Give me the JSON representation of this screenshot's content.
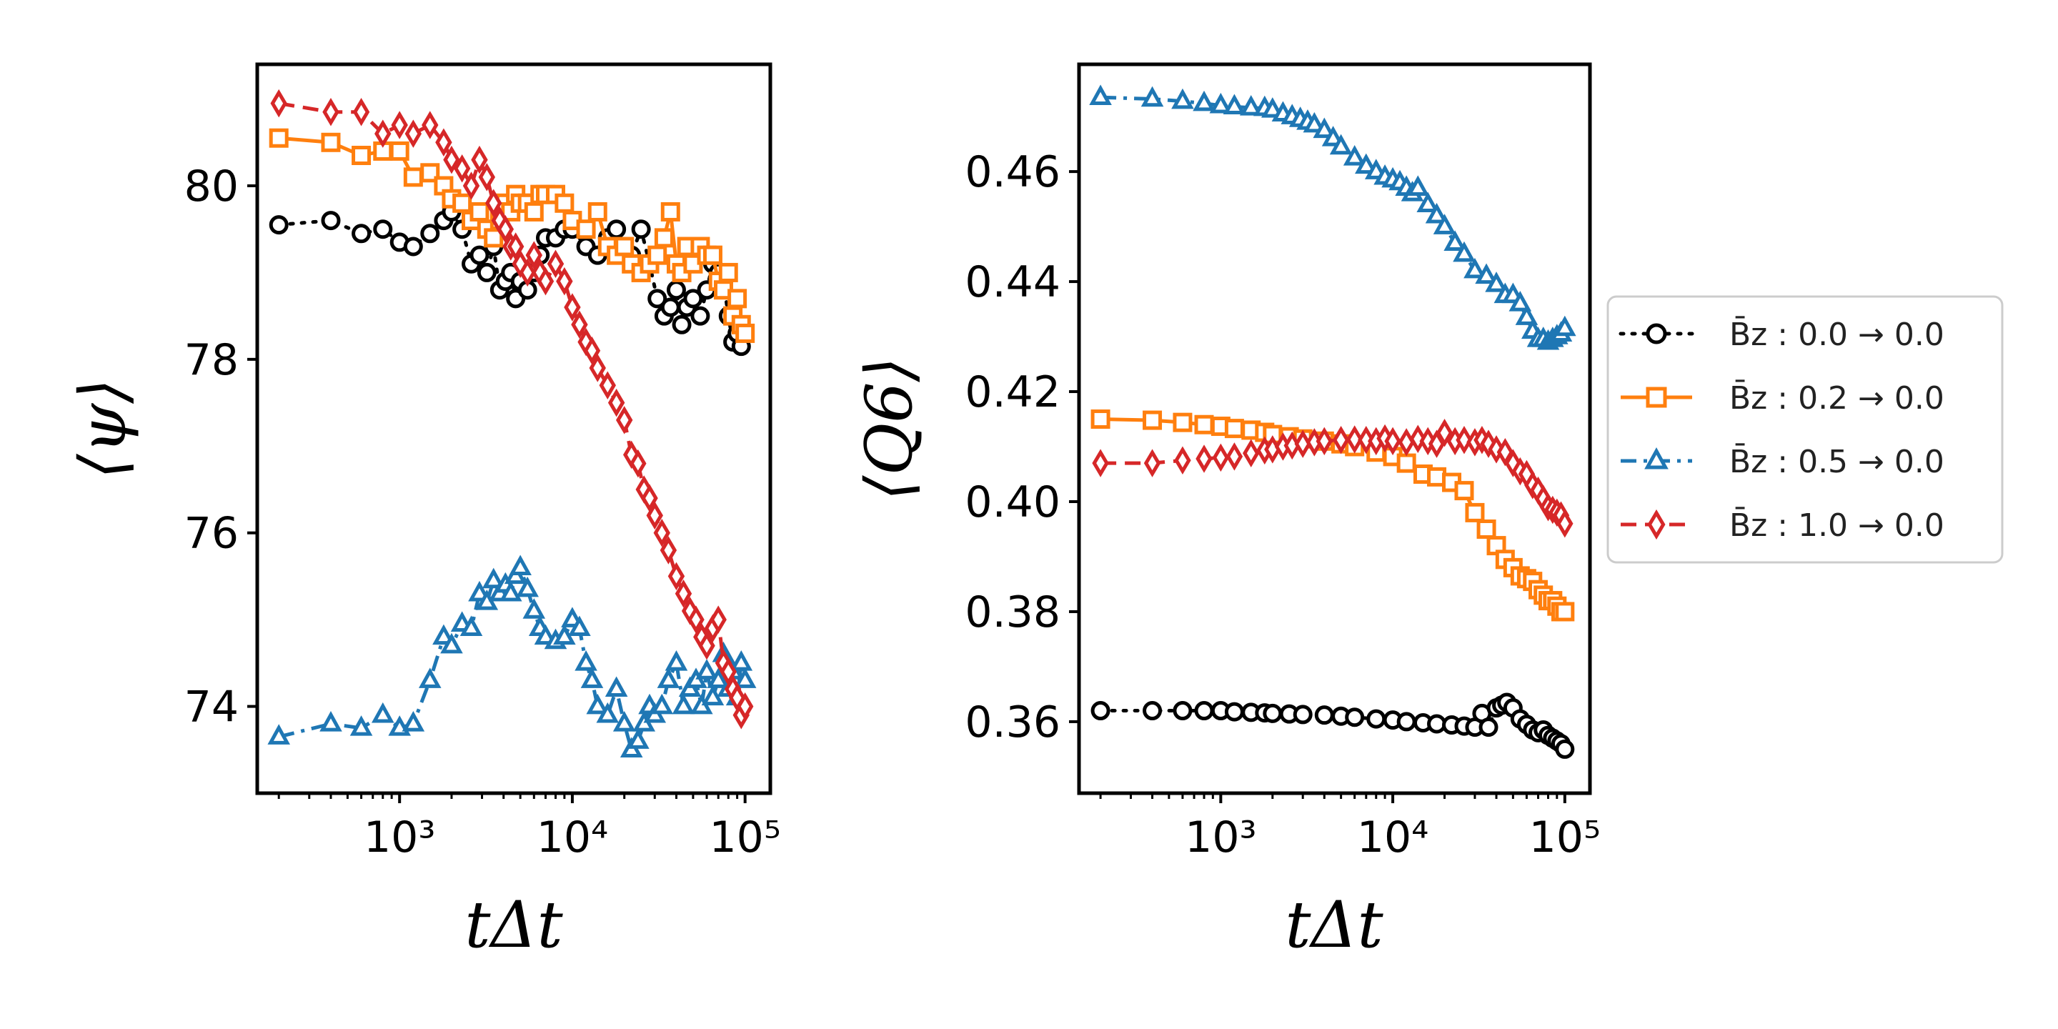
{
  "chart_data": [
    {
      "type": "line",
      "xscale": "log",
      "xlabel": "tΔt",
      "ylabel": "⟨ψ⟩",
      "xlim": [
        150,
        140000
      ],
      "ylim": [
        73.0,
        81.4
      ],
      "xticks": [
        {
          "value": 1000,
          "label": "10³"
        },
        {
          "value": 10000,
          "label": "10⁴"
        },
        {
          "value": 100000,
          "label": "10⁵"
        }
      ],
      "yticks": [
        {
          "value": 74,
          "label": "74"
        },
        {
          "value": 76,
          "label": "76"
        },
        {
          "value": 78,
          "label": "78"
        },
        {
          "value": 80,
          "label": "80"
        }
      ],
      "series": [
        {
          "key": "b00",
          "x": [
            200,
            400,
            600,
            800,
            1000,
            1200,
            1500,
            1800,
            2000,
            2300,
            2600,
            2900,
            3200,
            3500,
            3800,
            4100,
            4400,
            4700,
            5000,
            5500,
            6000,
            6500,
            7000,
            8000,
            9000,
            10000,
            12000,
            14000,
            16000,
            18000,
            20000,
            22000,
            25000,
            28000,
            31000,
            34000,
            37000,
            40000,
            43000,
            46000,
            50000,
            55000,
            60000,
            65000,
            70000,
            75000,
            80000,
            85000,
            90000,
            95000
          ],
          "y": [
            79.55,
            79.6,
            79.45,
            79.5,
            79.35,
            79.3,
            79.45,
            79.6,
            79.7,
            79.5,
            79.1,
            79.2,
            79.0,
            79.3,
            78.8,
            78.9,
            79.0,
            78.7,
            78.9,
            78.8,
            79.0,
            79.2,
            79.4,
            79.4,
            79.5,
            79.5,
            79.3,
            79.2,
            79.4,
            79.5,
            79.3,
            79.2,
            79.5,
            79.1,
            78.7,
            78.5,
            78.6,
            78.8,
            78.4,
            78.6,
            78.7,
            78.5,
            78.8,
            79.1,
            79.0,
            78.9,
            78.5,
            78.2,
            78.3,
            78.15
          ]
        },
        {
          "key": "b02",
          "x": [
            200,
            400,
            600,
            800,
            1000,
            1200,
            1500,
            1800,
            2000,
            2300,
            2600,
            2900,
            3200,
            3500,
            3800,
            4100,
            4400,
            4700,
            5000,
            5500,
            6000,
            6500,
            7000,
            8000,
            9000,
            10000,
            12000,
            14000,
            16000,
            18000,
            20000,
            22000,
            25000,
            28000,
            31000,
            34000,
            37000,
            40000,
            43000,
            46000,
            50000,
            55000,
            60000,
            65000,
            70000,
            75000,
            80000,
            85000,
            90000,
            95000,
            100000
          ],
          "y": [
            80.55,
            80.5,
            80.35,
            80.4,
            80.4,
            80.1,
            80.15,
            80.0,
            79.85,
            79.8,
            79.6,
            79.7,
            79.5,
            79.4,
            79.6,
            79.8,
            79.7,
            79.9,
            79.8,
            79.8,
            79.7,
            79.9,
            79.9,
            79.9,
            79.8,
            79.6,
            79.5,
            79.7,
            79.3,
            79.2,
            79.3,
            79.1,
            79.0,
            79.1,
            79.2,
            79.4,
            79.7,
            79.1,
            79.0,
            79.3,
            79.1,
            79.3,
            79.2,
            79.2,
            78.9,
            78.8,
            79.0,
            78.5,
            78.7,
            78.4,
            78.3
          ]
        },
        {
          "key": "b05",
          "x": [
            200,
            400,
            600,
            800,
            1000,
            1200,
            1500,
            1800,
            2000,
            2300,
            2600,
            2900,
            3200,
            3500,
            3800,
            4100,
            4400,
            4700,
            5000,
            5500,
            6000,
            6500,
            7000,
            8000,
            9000,
            10000,
            11000,
            12000,
            13000,
            14000,
            16000,
            18000,
            20000,
            22000,
            24000,
            26000,
            28000,
            30000,
            33000,
            36000,
            40000,
            44000,
            48000,
            52000,
            56000,
            60000,
            65000,
            70000,
            75000,
            80000,
            85000,
            90000,
            95000,
            100000
          ],
          "y": [
            73.65,
            73.8,
            73.75,
            73.9,
            73.75,
            73.8,
            74.3,
            74.8,
            74.7,
            74.95,
            74.9,
            75.3,
            75.2,
            75.45,
            75.3,
            75.4,
            75.3,
            75.5,
            75.6,
            75.35,
            75.1,
            74.9,
            74.8,
            74.75,
            74.8,
            75.0,
            74.9,
            74.5,
            74.3,
            74.0,
            73.9,
            74.2,
            73.8,
            73.5,
            73.6,
            73.8,
            74.0,
            73.9,
            74.0,
            74.3,
            74.5,
            74.0,
            74.2,
            74.3,
            74.0,
            74.4,
            74.1,
            74.3,
            74.6,
            74.2,
            74.4,
            74.1,
            74.5,
            74.3
          ]
        },
        {
          "key": "b10",
          "x": [
            200,
            400,
            600,
            800,
            1000,
            1200,
            1500,
            1800,
            2000,
            2300,
            2600,
            2900,
            3200,
            3500,
            3800,
            4100,
            4400,
            4700,
            5000,
            5500,
            6000,
            6500,
            7000,
            8000,
            9000,
            10000,
            11000,
            12000,
            13000,
            14000,
            16000,
            18000,
            20000,
            22000,
            24000,
            26000,
            28000,
            30000,
            33000,
            36000,
            40000,
            44000,
            48000,
            52000,
            56000,
            60000,
            65000,
            70000,
            75000,
            80000,
            85000,
            90000,
            95000,
            100000
          ],
          "y": [
            80.95,
            80.85,
            80.85,
            80.6,
            80.7,
            80.6,
            80.7,
            80.5,
            80.3,
            80.2,
            80.0,
            80.3,
            80.1,
            79.8,
            79.6,
            79.5,
            79.3,
            79.3,
            79.1,
            79.0,
            79.2,
            79.0,
            78.9,
            79.1,
            78.9,
            78.6,
            78.4,
            78.2,
            78.1,
            77.9,
            77.7,
            77.5,
            77.3,
            76.9,
            76.8,
            76.5,
            76.4,
            76.2,
            76.0,
            75.8,
            75.5,
            75.3,
            75.1,
            75.0,
            74.8,
            74.7,
            74.9,
            75.0,
            74.5,
            74.4,
            74.2,
            74.1,
            73.9,
            74.0
          ]
        }
      ]
    },
    {
      "type": "line",
      "xscale": "log",
      "xlabel": "tΔt",
      "ylabel": "⟨Q6⟩",
      "xlim": [
        150,
        140000
      ],
      "ylim": [
        0.347,
        0.4795
      ],
      "xticks": [
        {
          "value": 1000,
          "label": "10³"
        },
        {
          "value": 10000,
          "label": "10⁴"
        },
        {
          "value": 100000,
          "label": "10⁵"
        }
      ],
      "yticks": [
        {
          "value": 0.36,
          "label": "0.36"
        },
        {
          "value": 0.38,
          "label": "0.38"
        },
        {
          "value": 0.4,
          "label": "0.40"
        },
        {
          "value": 0.42,
          "label": "0.42"
        },
        {
          "value": 0.44,
          "label": "0.44"
        },
        {
          "value": 0.46,
          "label": "0.46"
        }
      ],
      "series": [
        {
          "key": "b00",
          "x": [
            200,
            400,
            600,
            800,
            1000,
            1200,
            1500,
            1800,
            2000,
            2500,
            3000,
            4000,
            5000,
            6000,
            8000,
            10000,
            12000,
            15000,
            18000,
            22000,
            26000,
            30000,
            33000,
            36000,
            40000,
            43000,
            46000,
            50000,
            55000,
            60000,
            65000,
            70000,
            75000,
            80000,
            85000,
            90000,
            95000,
            100000
          ],
          "y": [
            0.362,
            0.362,
            0.362,
            0.362,
            0.362,
            0.3618,
            0.3617,
            0.3616,
            0.3615,
            0.3614,
            0.3613,
            0.3612,
            0.361,
            0.3608,
            0.3605,
            0.3603,
            0.36,
            0.3598,
            0.3596,
            0.3594,
            0.3592,
            0.359,
            0.3615,
            0.359,
            0.3625,
            0.363,
            0.3635,
            0.3625,
            0.3605,
            0.3595,
            0.3585,
            0.358,
            0.3585,
            0.3575,
            0.357,
            0.3565,
            0.356,
            0.355
          ]
        },
        {
          "key": "b02",
          "x": [
            200,
            400,
            600,
            800,
            1000,
            1200,
            1500,
            1800,
            2000,
            2500,
            3000,
            4000,
            5000,
            6000,
            8000,
            10000,
            12000,
            15000,
            18000,
            22000,
            26000,
            30000,
            35000,
            40000,
            45000,
            50000,
            55000,
            60000,
            65000,
            70000,
            75000,
            80000,
            85000,
            90000,
            95000,
            100000
          ],
          "y": [
            0.415,
            0.4148,
            0.4144,
            0.414,
            0.4137,
            0.4133,
            0.413,
            0.4126,
            0.4122,
            0.4118,
            0.4114,
            0.411,
            0.4105,
            0.41,
            0.409,
            0.4082,
            0.407,
            0.405,
            0.4045,
            0.4035,
            0.402,
            0.398,
            0.395,
            0.392,
            0.3895,
            0.388,
            0.3865,
            0.386,
            0.3855,
            0.384,
            0.383,
            0.382,
            0.382,
            0.381,
            0.38,
            0.38
          ]
        },
        {
          "key": "b05",
          "x": [
            200,
            400,
            600,
            800,
            1000,
            1200,
            1500,
            1800,
            2000,
            2300,
            2600,
            2900,
            3200,
            3500,
            4000,
            4500,
            5000,
            6000,
            7000,
            8000,
            9000,
            10000,
            11000,
            12000,
            13000,
            14000,
            16000,
            18000,
            20000,
            23000,
            26000,
            30000,
            35000,
            40000,
            45000,
            50000,
            55000,
            60000,
            65000,
            70000,
            75000,
            80000,
            85000,
            90000,
            95000,
            100000
          ],
          "y": [
            0.4735,
            0.4732,
            0.4728,
            0.4724,
            0.472,
            0.4718,
            0.4716,
            0.4715,
            0.4712,
            0.4705,
            0.47,
            0.4695,
            0.469,
            0.4685,
            0.4675,
            0.466,
            0.4645,
            0.4625,
            0.461,
            0.46,
            0.459,
            0.4585,
            0.458,
            0.457,
            0.456,
            0.457,
            0.454,
            0.452,
            0.45,
            0.447,
            0.445,
            0.442,
            0.441,
            0.4395,
            0.4375,
            0.4375,
            0.436,
            0.4335,
            0.431,
            0.4295,
            0.4295,
            0.429,
            0.4295,
            0.43,
            0.4305,
            0.4315
          ]
        },
        {
          "key": "b10",
          "x": [
            200,
            400,
            600,
            800,
            1000,
            1200,
            1500,
            1800,
            2000,
            2300,
            2600,
            3000,
            3500,
            4000,
            5000,
            6000,
            7000,
            8000,
            9000,
            10000,
            12000,
            14000,
            16000,
            18000,
            20000,
            23000,
            26000,
            30000,
            33000,
            36000,
            40000,
            45000,
            50000,
            55000,
            60000,
            65000,
            70000,
            75000,
            80000,
            85000,
            90000,
            95000,
            100000
          ],
          "y": [
            0.407,
            0.407,
            0.4075,
            0.4078,
            0.408,
            0.4082,
            0.4088,
            0.4093,
            0.4095,
            0.41,
            0.4102,
            0.4105,
            0.4108,
            0.411,
            0.4112,
            0.4113,
            0.4112,
            0.411,
            0.4115,
            0.411,
            0.4108,
            0.4114,
            0.411,
            0.4105,
            0.4125,
            0.411,
            0.4112,
            0.4108,
            0.4112,
            0.4105,
            0.4095,
            0.409,
            0.407,
            0.4055,
            0.405,
            0.403,
            0.402,
            0.4005,
            0.399,
            0.3985,
            0.398,
            0.3975,
            0.396
          ]
        }
      ]
    }
  ],
  "legend": {
    "placement": "right",
    "items": [
      {
        "key": "b00",
        "label": "B̄z : 0.0 →  0.0",
        "color": "#000000",
        "marker": "circle",
        "linestyle": "dotted"
      },
      {
        "key": "b02",
        "label": "B̄z : 0.2 →  0.0",
        "color": "#ff7f0e",
        "marker": "square",
        "linestyle": "solid"
      },
      {
        "key": "b05",
        "label": "B̄z : 0.5 →  0.0",
        "color": "#1f77b4",
        "marker": "triangle",
        "linestyle": "dashdot"
      },
      {
        "key": "b10",
        "label": "B̄z : 1.0 →  0.0",
        "color": "#d62728",
        "marker": "diamond",
        "linestyle": "dashed"
      }
    ]
  }
}
